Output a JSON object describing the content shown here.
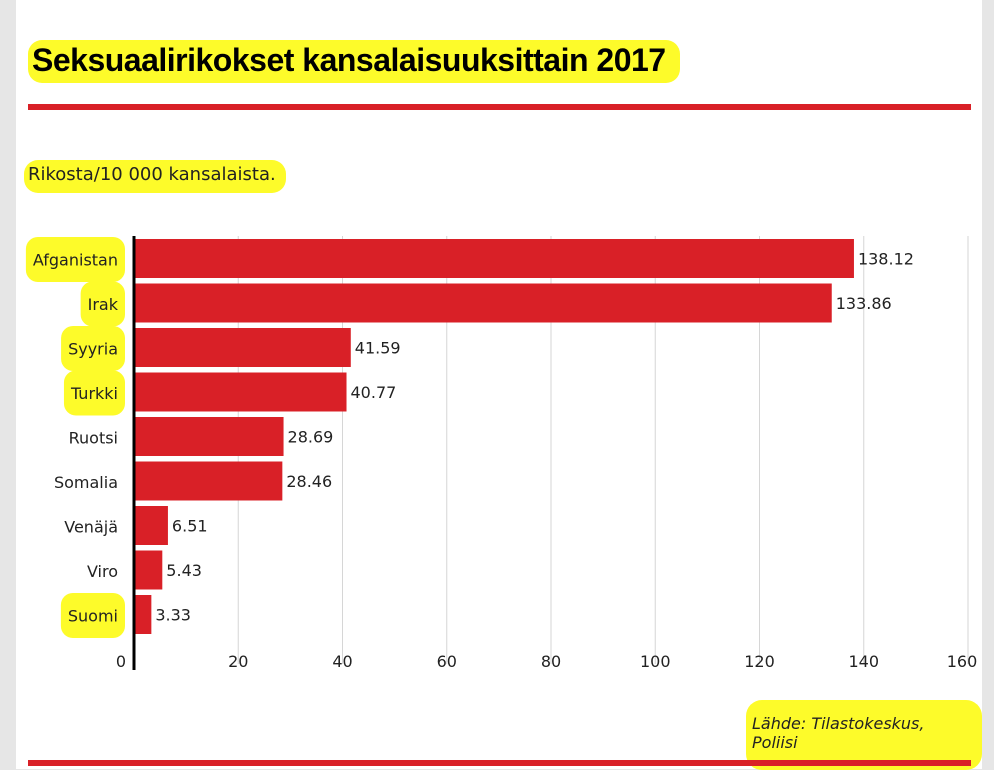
{
  "page": {
    "title": "Seksuaalirikokset kansalaisuuksittain 2017",
    "subtitle": "Rikosta/10 000 kansalaista.",
    "source": "Lähde: Tilastokeskus, Poliisi"
  },
  "colors": {
    "bar": "#d92027",
    "highlight": "#fdfb2a",
    "rule": "#d92027",
    "grid": "#d6d6d6",
    "axis": "#000000",
    "text": "#222222"
  },
  "chart_data": {
    "type": "bar",
    "orientation": "horizontal",
    "title": "Seksuaalirikokset kansalaisuuksittain 2017",
    "ylabel": "Rikosta/10 000 kansalaista.",
    "categories": [
      "Afganistan",
      "Irak",
      "Syyria",
      "Turkki",
      "Ruotsi",
      "Somalia",
      "Venäjä",
      "Viro",
      "Suomi"
    ],
    "values": [
      138.12,
      133.86,
      41.59,
      40.77,
      28.69,
      28.46,
      6.51,
      5.43,
      3.33
    ],
    "value_labels": [
      "138.12",
      "133.86",
      "41.59",
      "40.77",
      "28.69",
      "28.46",
      "6.51",
      "5.43",
      "3.33"
    ],
    "highlighted": [
      "Afganistan",
      "Irak",
      "Syyria",
      "Turkki",
      "Suomi"
    ],
    "xlim": [
      0,
      160
    ],
    "xticks": [
      0,
      20,
      40,
      60,
      80,
      100,
      120,
      140,
      160
    ],
    "grid": true
  }
}
